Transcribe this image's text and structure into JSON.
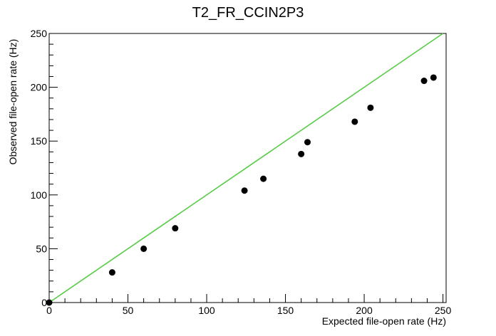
{
  "chart_data": {
    "type": "scatter",
    "title": "T2_FR_CCIN2P3",
    "xlabel": "Expected file-open rate (Hz)",
    "ylabel": "Observed file-open rate (Hz)",
    "xlim": [
      0,
      252
    ],
    "ylim": [
      0,
      250
    ],
    "x_ticks": [
      "0",
      "50",
      "100",
      "150",
      "200",
      "250"
    ],
    "y_ticks": [
      "0",
      "50",
      "100",
      "150",
      "200",
      "250"
    ],
    "grid": false,
    "reference_line": {
      "description": "y = x",
      "color": "#55cc44"
    },
    "points": [
      {
        "x": 0,
        "y": 0
      },
      {
        "x": 40,
        "y": 28
      },
      {
        "x": 60,
        "y": 50
      },
      {
        "x": 80,
        "y": 69
      },
      {
        "x": 124,
        "y": 104
      },
      {
        "x": 136,
        "y": 115
      },
      {
        "x": 160,
        "y": 138
      },
      {
        "x": 164,
        "y": 149
      },
      {
        "x": 194,
        "y": 168
      },
      {
        "x": 204,
        "y": 181
      },
      {
        "x": 238,
        "y": 206
      },
      {
        "x": 244,
        "y": 209
      }
    ],
    "marker_color": "#000000"
  }
}
